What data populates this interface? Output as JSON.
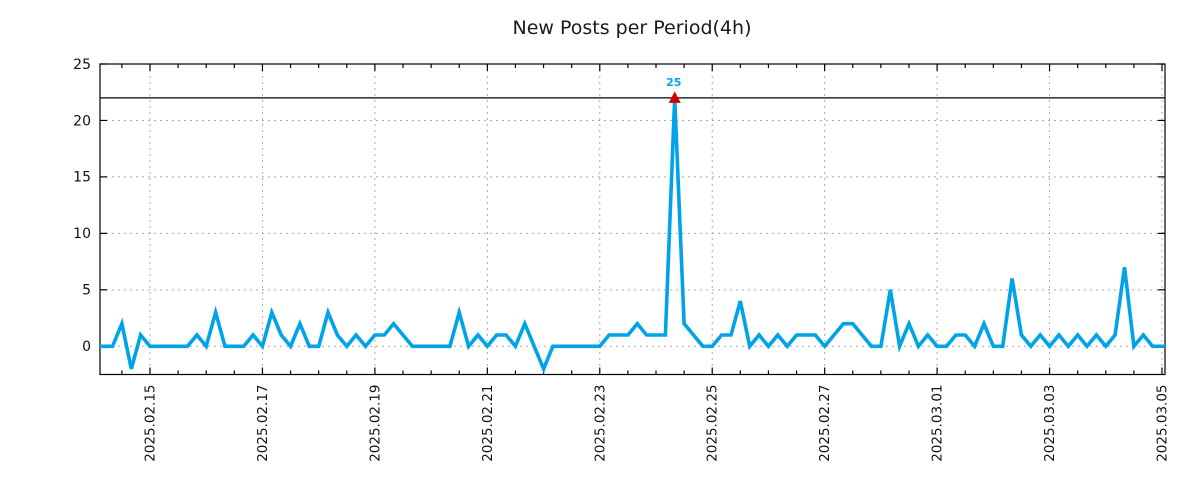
{
  "title": "New Posts per Period(4h)",
  "colors": {
    "line": "#00A2E8",
    "peak_marker": "#D40000",
    "peak_label": "#00A5E8",
    "grid": "#A9A9A9",
    "axis": "#000000",
    "cap_line": "#000000",
    "title_text": "#1a1a1a",
    "tick_text": "#111111",
    "background": "#ffffff"
  },
  "chart_data": {
    "type": "line",
    "title": "New Posts per Period(4h)",
    "xlabel": "",
    "ylabel": "",
    "period": "4h",
    "start": "2025.02.14 04:00",
    "end": "2025.03.05 00:00",
    "ylim": [
      -2.5,
      25
    ],
    "y_ticks": [
      0,
      5,
      10,
      15,
      20,
      25
    ],
    "x_tick_labels": [
      "2025.02.15",
      "2025.02.17",
      "2025.02.19",
      "2025.02.21",
      "2025.02.23",
      "2025.02.25",
      "2025.02.27",
      "2025.03.01",
      "2025.03.03",
      "2025.03.05"
    ],
    "x_tick_interval_days": 2,
    "minor_x_tick_hours": 12,
    "grid": true,
    "legend": false,
    "cap_line_y": 22,
    "series": [
      {
        "name": "new posts",
        "values": [
          0,
          0,
          2,
          -2,
          1,
          0,
          0,
          0,
          0,
          0,
          1,
          0,
          3,
          0,
          0,
          0,
          1,
          0,
          3,
          1,
          0,
          2,
          0,
          0,
          3,
          1,
          0,
          1,
          0,
          1,
          1,
          2,
          1,
          0,
          0,
          0,
          0,
          0,
          3,
          0,
          1,
          0,
          1,
          1,
          0,
          2,
          0,
          -2,
          0,
          0,
          0,
          0,
          0,
          0,
          1,
          1,
          1,
          2,
          1,
          1,
          1,
          25,
          2,
          1,
          0,
          0,
          1,
          1,
          4,
          0,
          1,
          0,
          1,
          0,
          1,
          1,
          1,
          0,
          1,
          2,
          2,
          1,
          0,
          0,
          5,
          0,
          2,
          0,
          1,
          0,
          0,
          1,
          1,
          0,
          2,
          0,
          0,
          6,
          1,
          0,
          1,
          0,
          1,
          0,
          1,
          0,
          1,
          0,
          1,
          7,
          0,
          1,
          0,
          0
        ]
      }
    ],
    "peak": {
      "index": 61,
      "time": "2025.02.24 08:00",
      "value": 25,
      "label": "25",
      "marker": "red-triangle-up",
      "clipped_at": 22
    }
  }
}
